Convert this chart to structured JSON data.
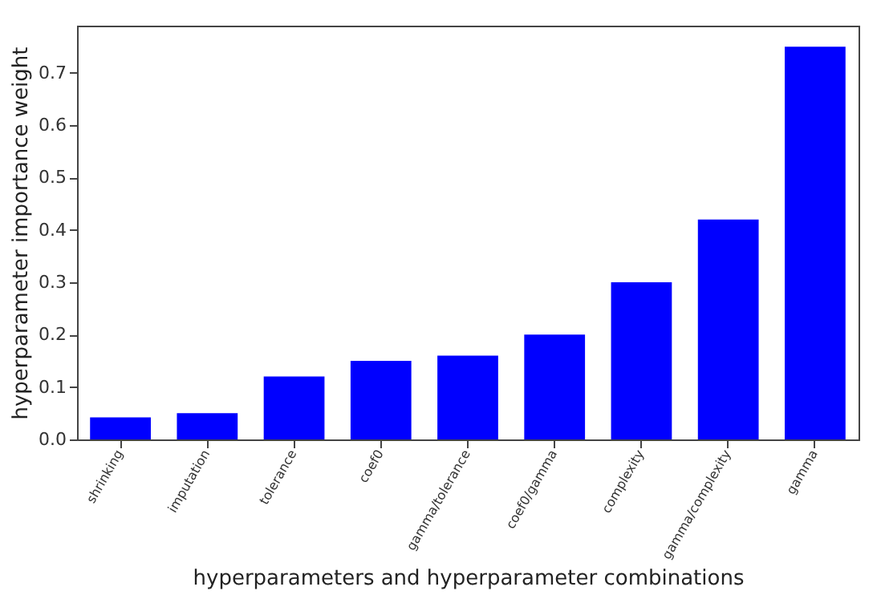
{
  "chart_data": {
    "type": "bar",
    "xlabel": "hyperparameters and hyperparameter combinations",
    "ylabel": "hyperparameter importance weight",
    "categories": [
      "shrinking",
      "imputation",
      "tolerance",
      "coef0",
      "gamma/tolerance",
      "coef0/gamma",
      "complexity",
      "gamma/complexity",
      "gamma"
    ],
    "values": [
      0.042,
      0.05,
      0.12,
      0.15,
      0.16,
      0.2,
      0.3,
      0.42,
      0.75
    ],
    "color": "#0000ff",
    "ylim": [
      0,
      0.79
    ],
    "yticks": [
      {
        "value": 0,
        "label": "0.0"
      },
      0.1,
      0.2,
      0.3,
      0.4,
      0.5,
      0.6,
      0.7
    ],
    "grid": false
  }
}
